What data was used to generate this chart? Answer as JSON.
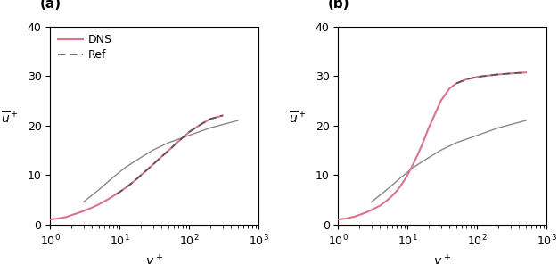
{
  "fig_width": 6.26,
  "fig_height": 2.96,
  "dpi": 100,
  "panels": [
    "a",
    "b"
  ],
  "xlabel": "y^+",
  "ylabel_a": "\\bar{u}^+",
  "ylabel_b": "\\bar{u}^+",
  "xlim": [
    1,
    1000
  ],
  "ylim": [
    0,
    40
  ],
  "yticks": [
    0,
    10,
    20,
    30,
    40
  ],
  "dns_color": "#d9748a",
  "ref_color": "#555555",
  "log_law_color": "#888888",
  "background_color": "#ffffff",
  "legend_labels": [
    "DNS",
    "Ref"
  ],
  "panel_a": {
    "dns_yplus": [
      1.0,
      1.3,
      1.7,
      2.0,
      2.5,
      3.0,
      4.0,
      5.0,
      6.0,
      7.0,
      8.0,
      9.0,
      10.0,
      12.0,
      14.0,
      16.0,
      20.0,
      25.0,
      30.0,
      40.0,
      50.0,
      70.0,
      100.0,
      150.0,
      200.0,
      300.0
    ],
    "dns_u": [
      1.0,
      1.2,
      1.5,
      1.85,
      2.3,
      2.7,
      3.4,
      4.05,
      4.65,
      5.2,
      5.7,
      6.15,
      6.55,
      7.35,
      8.05,
      8.7,
      9.9,
      11.1,
      12.1,
      13.7,
      14.9,
      16.8,
      18.7,
      20.3,
      21.3,
      22.0
    ],
    "ref_yplus": [
      9.0,
      10.0,
      12.0,
      14.0,
      16.0,
      20.0,
      25.0,
      30.0,
      40.0,
      50.0,
      70.0,
      100.0,
      150.0,
      200.0,
      300.0
    ],
    "ref_u": [
      6.15,
      6.55,
      7.35,
      8.05,
      8.7,
      9.9,
      11.1,
      12.1,
      13.7,
      14.9,
      16.8,
      18.7,
      20.3,
      21.3,
      22.0
    ],
    "loglaw_yplus": [
      3.0,
      5.0,
      8.0,
      12.0,
      20.0,
      30.0,
      50.0,
      100.0,
      200.0,
      500.0
    ],
    "loglaw_u": [
      4.5,
      7.0,
      9.5,
      11.5,
      13.5,
      15.0,
      16.5,
      18.0,
      19.5,
      21.0
    ]
  },
  "panel_b": {
    "dns_yplus": [
      1.0,
      1.3,
      1.7,
      2.0,
      2.5,
      3.0,
      4.0,
      5.0,
      6.0,
      7.0,
      8.0,
      9.0,
      10.0,
      12.0,
      14.0,
      16.0,
      20.0,
      25.0,
      30.0,
      40.0,
      50.0,
      70.0,
      100.0,
      150.0,
      200.0,
      300.0,
      500.0
    ],
    "dns_u": [
      1.0,
      1.2,
      1.55,
      1.9,
      2.4,
      2.9,
      3.8,
      4.8,
      5.8,
      6.8,
      7.9,
      9.0,
      10.1,
      12.2,
      14.2,
      16.0,
      19.5,
      22.5,
      25.0,
      27.5,
      28.5,
      29.3,
      29.8,
      30.1,
      30.3,
      30.5,
      30.7
    ],
    "ref_yplus": [
      50.0,
      70.0,
      100.0,
      150.0,
      200.0,
      300.0,
      500.0
    ],
    "ref_u": [
      28.5,
      29.3,
      29.8,
      30.1,
      30.3,
      30.5,
      30.7
    ],
    "loglaw_yplus": [
      3.0,
      5.0,
      8.0,
      12.0,
      20.0,
      30.0,
      50.0,
      100.0,
      200.0,
      500.0
    ],
    "loglaw_u": [
      4.5,
      7.0,
      9.5,
      11.5,
      13.5,
      15.0,
      16.5,
      18.0,
      19.5,
      21.0
    ]
  }
}
